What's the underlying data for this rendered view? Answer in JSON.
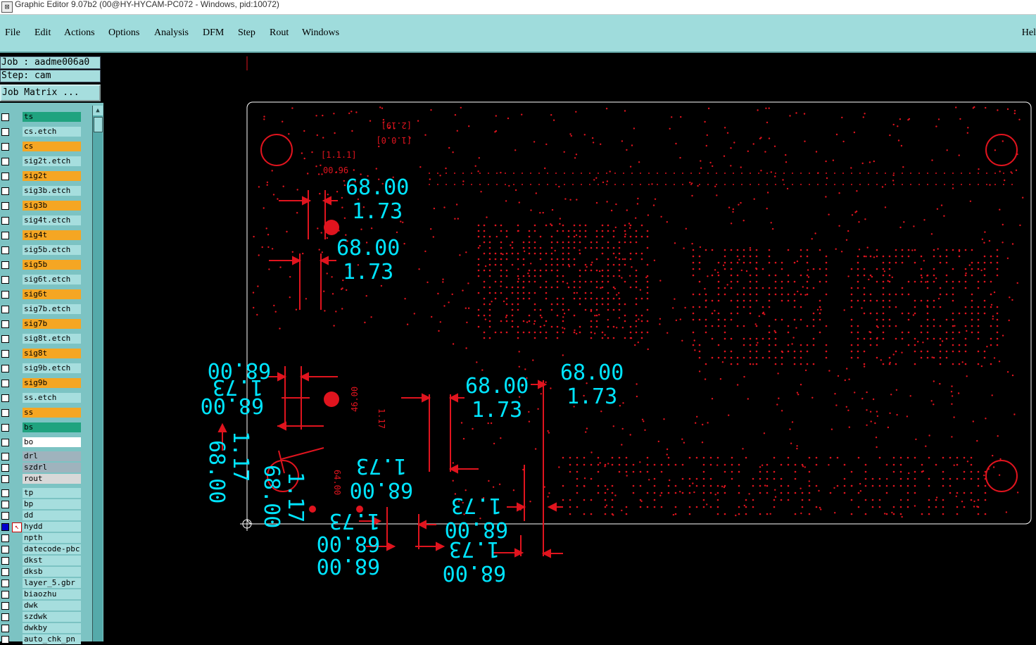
{
  "window": {
    "title": "Graphic Editor 9.07b2 (00@HY-HYCAM-PC072 - Windows, pid:10072)"
  },
  "menu": {
    "items": [
      "File",
      "Edit",
      "Actions",
      "Options",
      "Analysis",
      "DFM",
      "Step",
      "Rout",
      "Windows"
    ],
    "help": "Hel"
  },
  "job": {
    "label": "Job : aadme006a0",
    "step": "Step: cam",
    "matrix_button": "Job Matrix ..."
  },
  "layers": [
    {
      "name": "ts",
      "color": "#1fa37f",
      "selected": false
    },
    {
      "name": "cs.etch",
      "color": "#a6dede",
      "selected": false
    },
    {
      "name": "cs",
      "color": "#f5a623",
      "selected": false
    },
    {
      "name": "sig2t.etch",
      "color": "#a6dede",
      "selected": false
    },
    {
      "name": "sig2t",
      "color": "#f5a623",
      "selected": false
    },
    {
      "name": "sig3b.etch",
      "color": "#a6dede",
      "selected": false
    },
    {
      "name": "sig3b",
      "color": "#f5a623",
      "selected": false
    },
    {
      "name": "sig4t.etch",
      "color": "#a6dede",
      "selected": false
    },
    {
      "name": "sig4t",
      "color": "#f5a623",
      "selected": false
    },
    {
      "name": "sig5b.etch",
      "color": "#a6dede",
      "selected": false
    },
    {
      "name": "sig5b",
      "color": "#f5a623",
      "selected": false
    },
    {
      "name": "sig6t.etch",
      "color": "#a6dede",
      "selected": false
    },
    {
      "name": "sig6t",
      "color": "#f5a623",
      "selected": false
    },
    {
      "name": "sig7b.etch",
      "color": "#a6dede",
      "selected": false
    },
    {
      "name": "sig7b",
      "color": "#f5a623",
      "selected": false
    },
    {
      "name": "sig8t.etch",
      "color": "#a6dede",
      "selected": false
    },
    {
      "name": "sig8t",
      "color": "#f5a623",
      "selected": false
    },
    {
      "name": "sig9b.etch",
      "color": "#a6dede",
      "selected": false
    },
    {
      "name": "sig9b",
      "color": "#f5a623",
      "selected": false
    },
    {
      "name": "ss.etch",
      "color": "#a6dede",
      "selected": false
    },
    {
      "name": "ss",
      "color": "#f5a623",
      "selected": false
    },
    {
      "name": "bs",
      "color": "#1fa37f",
      "selected": false
    },
    {
      "name": "bo",
      "color": "#ffffff",
      "selected": false
    },
    {
      "name": "drl",
      "color": "#9fb3bd",
      "selected": false
    },
    {
      "name": "szdrl",
      "color": "#9fb3bd",
      "selected": false
    },
    {
      "name": "rout",
      "color": "#d8d8d8",
      "selected": false
    },
    {
      "name": "tp",
      "color": "#a6dede",
      "selected": false
    },
    {
      "name": "bp",
      "color": "#a6dede",
      "selected": false
    },
    {
      "name": "dd",
      "color": "#a6dede",
      "selected": false
    },
    {
      "name": "hydd",
      "color": "#a6dede",
      "selected": true
    },
    {
      "name": "npth",
      "color": "#a6dede",
      "selected": false
    },
    {
      "name": "datecode-pbc",
      "color": "#a6dede",
      "selected": false
    },
    {
      "name": "dkst",
      "color": "#a6dede",
      "selected": false
    },
    {
      "name": "dksb",
      "color": "#a6dede",
      "selected": false
    },
    {
      "name": "layer_5.gbr",
      "color": "#a6dede",
      "selected": false
    },
    {
      "name": "biaozhu",
      "color": "#a6dede",
      "selected": false
    },
    {
      "name": "dwk",
      "color": "#a6dede",
      "selected": false
    },
    {
      "name": "szdwk",
      "color": "#a6dede",
      "selected": false
    },
    {
      "name": "dwkby",
      "color": "#a6dede",
      "selected": false
    },
    {
      "name": "auto_chk_pn",
      "color": "#a6dede",
      "selected": false
    }
  ],
  "canvas": {
    "measure_big": "68.00",
    "measure_small": "1.73",
    "measure_alt": "1.17",
    "measure_46": "46.00",
    "measure_64": "64.00",
    "ref_top": "[2.19]",
    "ref_top2": "[1.0.0]",
    "ref_left": "[1.1.1]",
    "ref_left2": "00.96",
    "colors": {
      "board": "#e0141e",
      "text": "#00e5ff",
      "outline": "#ffffff"
    }
  }
}
